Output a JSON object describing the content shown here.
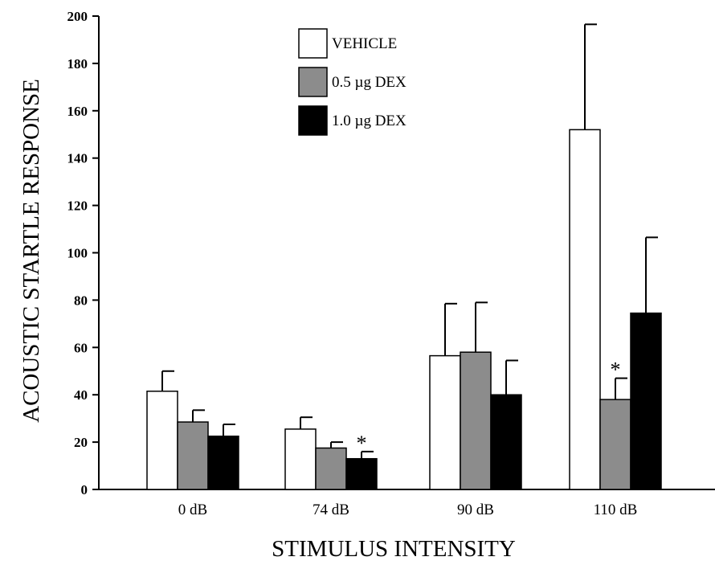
{
  "chart_data": {
    "type": "bar",
    "title": "",
    "xlabel": "STIMULUS INTENSITY",
    "ylabel": "ACOUSTIC STARTLE RESPONSE",
    "ylim": [
      0,
      200
    ],
    "yticks": [
      0,
      20,
      40,
      60,
      80,
      100,
      120,
      140,
      160,
      180,
      200
    ],
    "categories": [
      "0 dB",
      "74 dB",
      "90 dB",
      "110 dB"
    ],
    "series": [
      {
        "name": "VEHICLE",
        "color": "#ffffff",
        "values": [
          41.5,
          25.5,
          56.5,
          152
        ],
        "errors": [
          8.5,
          5,
          22,
          44.5
        ]
      },
      {
        "name": "0.5 µg DEX",
        "color": "#8c8c8c",
        "values": [
          28.5,
          17.5,
          58,
          38
        ],
        "errors": [
          5,
          2.5,
          21,
          9
        ]
      },
      {
        "name": "1.0 µg DEX",
        "color": "#000000",
        "values": [
          22.5,
          13,
          40,
          74.5
        ],
        "errors": [
          5,
          3,
          14.5,
          32
        ]
      }
    ],
    "annotations": [
      {
        "text": "*",
        "category": "74 dB",
        "series": "1.0 µg DEX"
      },
      {
        "text": "*",
        "category": "110 dB",
        "series": "0.5 µg DEX"
      }
    ],
    "legend_position": "top-center",
    "grid": false
  }
}
